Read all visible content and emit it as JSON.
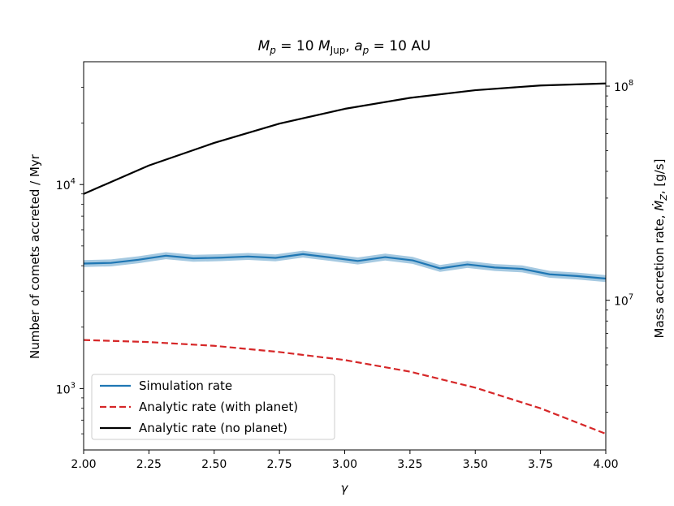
{
  "chart_data": {
    "type": "line",
    "title": "M_p = 10 M_Jup, a_p = 10 AU",
    "title_parts": {
      "m": "M",
      "m_sub": "p",
      "eq1": " = 10 ",
      "mj": "M",
      "mj_sub": "Jup",
      "comma": ", ",
      "a": "a",
      "a_sub": "p",
      "eq2": " = 10 AU"
    },
    "xlabel": "γ",
    "ylabel": "Number of comets accreted / Myr",
    "ylabel_right": "Mass accretion rate, Ṁ_Z, [g/s]",
    "ylabel_right_parts": {
      "pre": "Mass accretion rate, ",
      "sym": "Ṁ",
      "sub": "Z",
      "post": ", [g/s]"
    },
    "xlim": [
      2.0,
      4.0
    ],
    "ylim": [
      500,
      40000
    ],
    "yscale": "log",
    "ylim_right": [
      2000000,
      130000000
    ],
    "x_ticks": [
      2.0,
      2.25,
      2.5,
      2.75,
      3.0,
      3.25,
      3.5,
      3.75,
      4.0
    ],
    "x_tick_labels": [
      "2.00",
      "2.25",
      "2.50",
      "2.75",
      "3.00",
      "3.25",
      "3.50",
      "3.75",
      "4.00"
    ],
    "y_ticks": [
      1000,
      10000
    ],
    "y_tick_labels": [
      {
        "base": "10",
        "exp": "3"
      },
      {
        "base": "10",
        "exp": "4"
      }
    ],
    "y_right_ticks": [
      10000000,
      100000000
    ],
    "y_right_tick_labels": [
      {
        "base": "10",
        "exp": "7"
      },
      {
        "base": "10",
        "exp": "8"
      }
    ],
    "grid": false,
    "legend_position": "lower-left",
    "series": [
      {
        "name": "Simulation rate",
        "color": "#1f77b4",
        "style": "solid",
        "band": true,
        "x": [
          2.0,
          2.105,
          2.21,
          2.315,
          2.42,
          2.525,
          2.63,
          2.735,
          2.84,
          2.945,
          3.05,
          3.155,
          3.26,
          3.365,
          3.47,
          3.575,
          3.68,
          3.785,
          3.89,
          4.0
        ],
        "values": [
          4100,
          4130,
          4280,
          4480,
          4350,
          4380,
          4440,
          4370,
          4560,
          4390,
          4220,
          4410,
          4250,
          3880,
          4060,
          3920,
          3860,
          3630,
          3560,
          3460
        ]
      },
      {
        "name": "Analytic rate (with planet)",
        "color": "#d62728",
        "style": "dashed",
        "x": [
          2.0,
          2.25,
          2.5,
          2.75,
          3.0,
          3.25,
          3.5,
          3.75,
          4.0
        ],
        "values": [
          1730,
          1690,
          1620,
          1510,
          1380,
          1210,
          1010,
          800,
          600
        ]
      },
      {
        "name": "Analytic rate (no planet)",
        "color": "#000000",
        "style": "solid",
        "x": [
          2.0,
          2.25,
          2.5,
          2.75,
          3.0,
          3.25,
          3.5,
          3.75,
          4.0
        ],
        "values": [
          9000,
          12400,
          16000,
          19900,
          23500,
          26600,
          29000,
          30600,
          31300
        ]
      }
    ]
  }
}
